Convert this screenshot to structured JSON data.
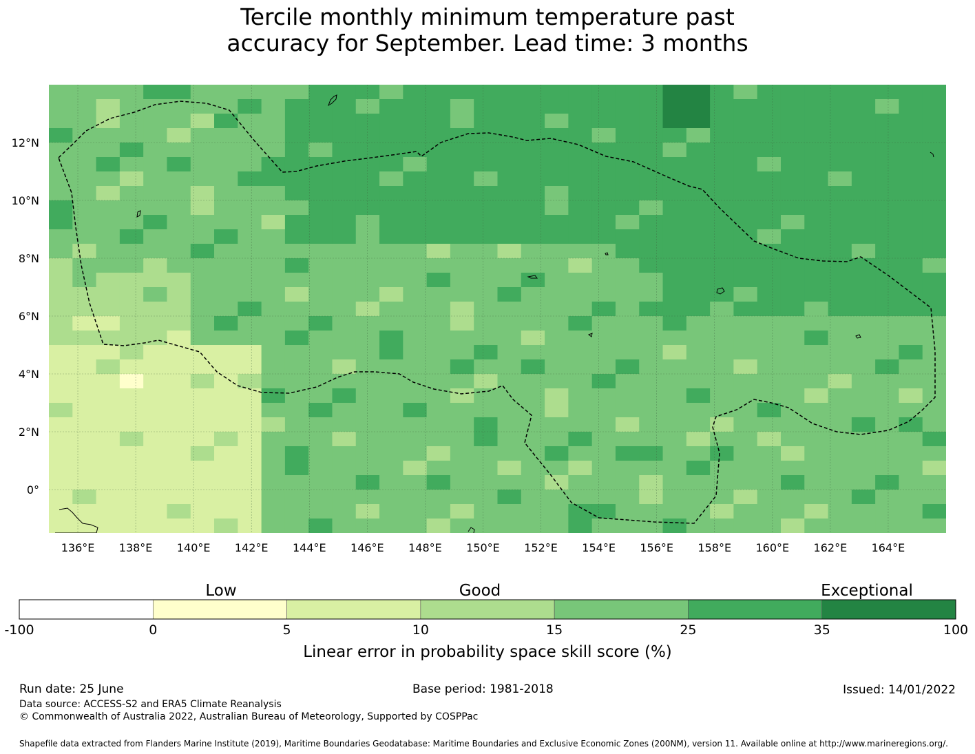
{
  "title": {
    "line1": "Tercile monthly minimum temperature past",
    "line2": "accuracy for September. Lead time: 3 months"
  },
  "map": {
    "lon_range": [
      135.0,
      166.0
    ],
    "lat_range": [
      -1.5,
      14.0
    ],
    "x_ticks": [
      "136°E",
      "138°E",
      "140°E",
      "142°E",
      "144°E",
      "146°E",
      "148°E",
      "150°E",
      "152°E",
      "154°E",
      "156°E",
      "158°E",
      "160°E",
      "162°E",
      "164°E"
    ],
    "x_tick_values": [
      136,
      138,
      140,
      142,
      144,
      146,
      148,
      150,
      152,
      154,
      156,
      158,
      160,
      162,
      164
    ],
    "y_ticks": [
      "12°N",
      "10°N",
      "8°N",
      "6°N",
      "4°N",
      "2°N",
      "0°"
    ],
    "y_tick_values": [
      12,
      10,
      8,
      6,
      4,
      2,
      0
    ],
    "gridlines": true,
    "eez_boundary_style": "dashed"
  },
  "legend": {
    "low_label": "Low",
    "good_label": "Good",
    "exceptional_label": "Exceptional",
    "bin_edges": [
      "-100",
      "0",
      "5",
      "10",
      "15",
      "25",
      "35",
      "100"
    ],
    "colors": [
      "#ffffff",
      "#ffffcc",
      "#d9f0a3",
      "#addd8e",
      "#78c679",
      "#41ab5d",
      "#238443"
    ],
    "axis_label": "Linear error in probability space skill score (%)"
  },
  "footer": {
    "run_date": "Run date: 25 June",
    "base_period": "Base period: 1981-2018",
    "issued": "Issued: 14/01/2022",
    "data_source": "Data source: ACCESS-S2 and ERA5 Climate Reanalysis",
    "copyright": "© Commonwealth of Australia 2022, Australian Bureau of Meteorology, Supported by COSPPac",
    "shapefile": "Shapefile data extracted from Flanders Marine Institute (2019), Maritime Boundaries Geodatabase: Maritime Boundaries and Exclusive Economic Zones (200NM), version 11. Available online at http://www.marineregions.org/."
  }
}
